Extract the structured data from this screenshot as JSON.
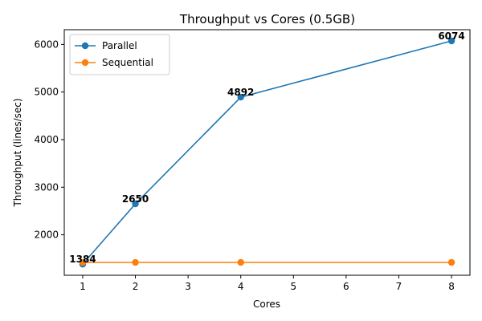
{
  "chart_data": {
    "type": "line",
    "title": "Throughput vs Cores (0.5GB)",
    "xlabel": "Cores",
    "ylabel": "Throughput (lines/sec)",
    "xlim": [
      0.65,
      8.35
    ],
    "ylim": [
      1150,
      6310
    ],
    "xticks": [
      1,
      2,
      3,
      4,
      5,
      6,
      7,
      8
    ],
    "yticks": [
      2000,
      3000,
      4000,
      5000,
      6000
    ],
    "grid": false,
    "legend_position": "top-left",
    "series": [
      {
        "name": "Parallel",
        "color": "#1f77b4",
        "marker": "circle",
        "x": [
          1,
          2,
          4,
          8
        ],
        "y": [
          1384,
          2650,
          4892,
          6074
        ],
        "data_labels": [
          "1384",
          "2650",
          "4892",
          "6074"
        ]
      },
      {
        "name": "Sequential",
        "color": "#ff7f0e",
        "marker": "circle",
        "x": [
          1,
          2,
          4,
          8
        ],
        "y": [
          1420,
          1420,
          1420,
          1420
        ]
      }
    ]
  }
}
